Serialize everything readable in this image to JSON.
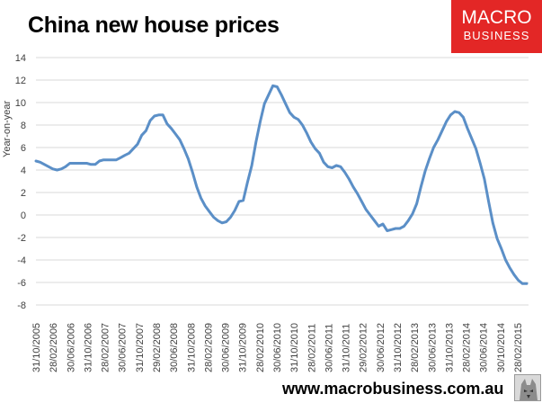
{
  "title": "China new house prices",
  "logo": {
    "line1": "MACRO",
    "line2": "BUSINESS"
  },
  "footer_url": "www.macrobusiness.com.au",
  "chart_data": {
    "type": "line",
    "title": "China new house prices",
    "xlabel": "",
    "ylabel": "Year-on-year",
    "ylim": [
      -8,
      14
    ],
    "yticks": [
      14,
      12,
      10,
      8,
      6,
      4,
      2,
      0,
      -2,
      -4,
      -6,
      -8
    ],
    "xtick_labels": [
      "31/10/2005",
      "28/02/2006",
      "30/06/2006",
      "31/10/2006",
      "28/02/2007",
      "30/06/2007",
      "31/10/2007",
      "29/02/2008",
      "30/06/2008",
      "31/10/2008",
      "28/02/2009",
      "30/06/2009",
      "31/10/2009",
      "28/02/2010",
      "30/06/2010",
      "31/10/2010",
      "28/02/2011",
      "30/06/2011",
      "31/10/2011",
      "29/02/2012",
      "30/06/2012",
      "31/10/2012",
      "28/02/2013",
      "30/06/2013",
      "31/10/2013",
      "28/02/2014",
      "30/06/2014",
      "30/10/2014",
      "28/02/2015"
    ],
    "grid": "horizontal",
    "line_color": "#5b8fc7",
    "series": [
      {
        "values": [
          4.8,
          4.7,
          4.5,
          4.3,
          4.1,
          4.0,
          4.1,
          4.3,
          4.6,
          4.6,
          4.6,
          4.6,
          4.6,
          4.5,
          4.5,
          4.8,
          4.9,
          4.9,
          4.9,
          4.9,
          5.1,
          5.3,
          5.5,
          5.9,
          6.3,
          7.1,
          7.5,
          8.4,
          8.8,
          8.9,
          8.9,
          8.1,
          7.7,
          7.2,
          6.7,
          5.9,
          5.0,
          3.8,
          2.5,
          1.5,
          0.8,
          0.3,
          -0.2,
          -0.5,
          -0.7,
          -0.6,
          -0.2,
          0.4,
          1.2,
          1.3,
          2.9,
          4.4,
          6.5,
          8.3,
          9.9,
          10.7,
          11.5,
          11.4,
          10.7,
          9.9,
          9.1,
          8.7,
          8.5,
          8.0,
          7.3,
          6.5,
          5.9,
          5.5,
          4.7,
          4.3,
          4.2,
          4.4,
          4.3,
          3.8,
          3.2,
          2.5,
          1.9,
          1.2,
          0.5,
          0.0,
          -0.5,
          -1.0,
          -0.8,
          -1.4,
          -1.3,
          -1.2,
          -1.2,
          -1.0,
          -0.5,
          0.1,
          1.0,
          2.5,
          3.9,
          5.0,
          6.0,
          6.7,
          7.5,
          8.3,
          8.9,
          9.2,
          9.1,
          8.7,
          7.7,
          6.8,
          5.9,
          4.6,
          3.2,
          1.2,
          -0.7,
          -2.1,
          -3.0,
          -4.0,
          -4.7,
          -5.3,
          -5.8,
          -6.1,
          -6.1
        ]
      }
    ]
  }
}
